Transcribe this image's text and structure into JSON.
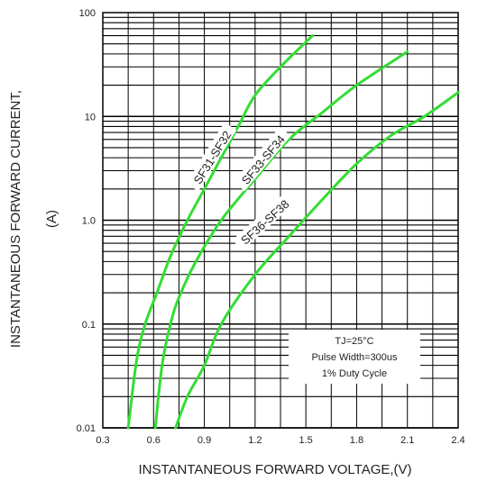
{
  "chart_data": {
    "type": "line",
    "title": "",
    "xlabel": "INSTANTANEOUS FORWARD VOLTAGE,(V)",
    "ylabel": "INSTANTANEOUS FORWARD CURRENT,",
    "ylabel_unit": "(A)",
    "x_scale": "linear",
    "y_scale": "log",
    "xlim": [
      0.3,
      2.4
    ],
    "ylim": [
      0.01,
      100
    ],
    "x_ticks": [
      0.3,
      0.6,
      0.9,
      1.2,
      1.5,
      1.8,
      2.1,
      2.4
    ],
    "x_tick_labels": [
      "0.3",
      "0.6",
      "0.9",
      "1.2",
      "1.5",
      "1.8",
      "2.1",
      "2.4"
    ],
    "y_ticks": [
      0.01,
      0.1,
      1.0,
      10,
      100
    ],
    "y_tick_labels": [
      "0.01",
      "0.1",
      "1.0",
      "10",
      "100"
    ],
    "grid": true,
    "legend": "none",
    "series_color": "#33dd33",
    "series": [
      {
        "name": "SF31-SF32",
        "x": [
          0.45,
          0.5,
          0.55,
          0.62,
          0.7,
          0.8,
          0.9,
          1.0,
          1.1,
          1.2,
          1.35,
          1.54
        ],
        "y": [
          0.01,
          0.045,
          0.1,
          0.2,
          0.45,
          1.0,
          2.0,
          4.0,
          8.0,
          16.0,
          30.0,
          60.0
        ]
      },
      {
        "name": "SF33-SF34",
        "x": [
          0.61,
          0.65,
          0.7,
          0.75,
          0.85,
          1.0,
          1.2,
          1.4,
          1.6,
          1.8,
          2.1
        ],
        "y": [
          0.01,
          0.04,
          0.1,
          0.18,
          0.4,
          1.0,
          2.5,
          6.0,
          11.0,
          20.0,
          42.0
        ]
      },
      {
        "name": "SF36-SF38",
        "x": [
          0.73,
          0.8,
          0.9,
          1.0,
          1.2,
          1.4,
          1.6,
          1.8,
          2.0,
          2.2,
          2.4
        ],
        "y": [
          0.01,
          0.02,
          0.04,
          0.1,
          0.3,
          0.7,
          1.6,
          3.5,
          6.5,
          10.0,
          17.0
        ]
      }
    ],
    "annotation": {
      "line1": "TJ=25°C",
      "line2": "Pulse Width=300us",
      "line3": "1% Duty Cycle"
    }
  }
}
